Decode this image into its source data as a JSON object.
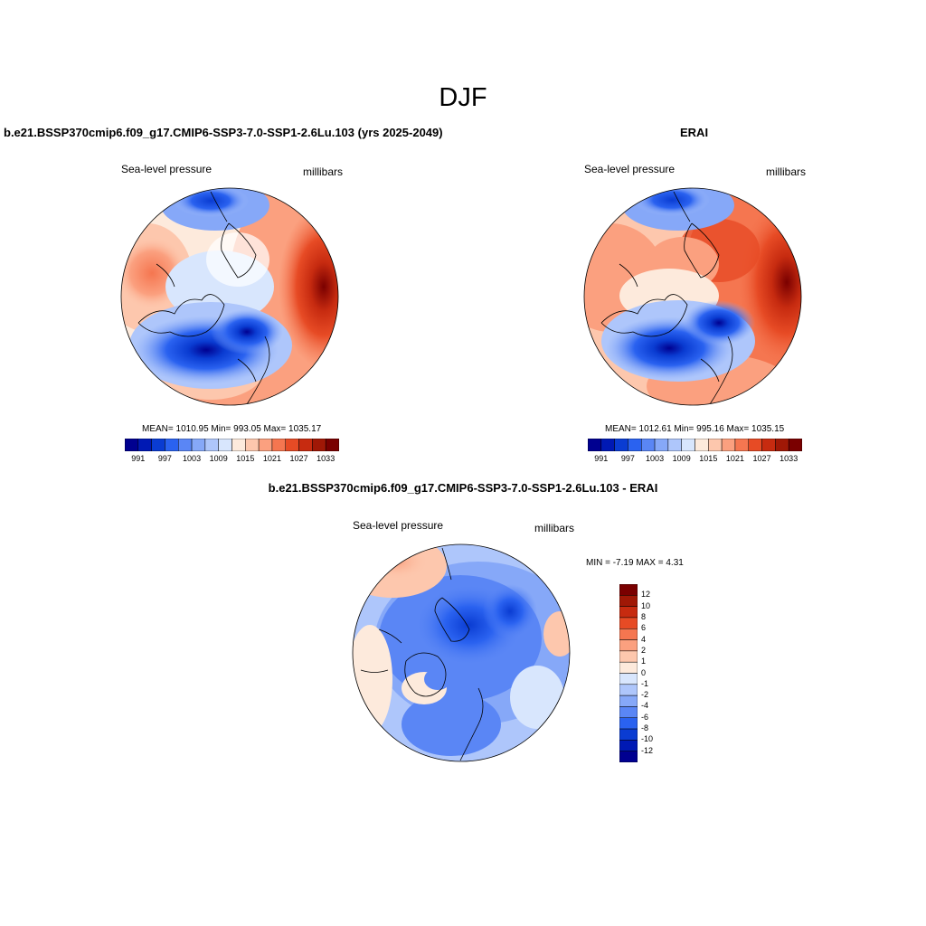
{
  "title": "DJF",
  "palette": [
    "#000090",
    "#0019b4",
    "#0a3cd2",
    "#2a62f0",
    "#5a86f5",
    "#86a8f8",
    "#aec6fb",
    "#d8e6fd",
    "#fdeadc",
    "#fdc7ad",
    "#fba07f",
    "#f57650",
    "#e74b25",
    "#c72b10",
    "#a01806",
    "#7a0000"
  ],
  "panels": [
    {
      "id": "model",
      "case": "b.e21.BSSP370cmip6.f09_g17.CMIP6-SSP3-7.0-SSP1-2.6Lu.103 (yrs 2025-2049)",
      "variable": "Sea-level pressure",
      "units": "millibars",
      "stats": "MEAN= 1010.95   Min= 993.05   Max= 1035.17",
      "colorbar_ticks": [
        "991",
        "997",
        "1003",
        "1009",
        "1015",
        "1021",
        "1027",
        "1033"
      ]
    },
    {
      "id": "obs",
      "case": "ERAI",
      "variable": "Sea-level pressure",
      "units": "millibars",
      "stats": "MEAN= 1012.61   Min= 995.16   Max= 1035.15",
      "colorbar_ticks": [
        "991",
        "997",
        "1003",
        "1009",
        "1015",
        "1021",
        "1027",
        "1033"
      ]
    },
    {
      "id": "diff",
      "case": "b.e21.BSSP370cmip6.f09_g17.CMIP6-SSP3-7.0-SSP1-2.6Lu.103 - ERAI",
      "variable": "Sea-level pressure",
      "units": "millibars",
      "stats": "MIN =  -7.19 MAX =   4.31",
      "colorbar_ticks": [
        "12",
        "10",
        "8",
        "6",
        "4",
        "2",
        "1",
        "0",
        "-1",
        "-2",
        "-4",
        "-6",
        "-8",
        "-10",
        "-12"
      ]
    }
  ]
}
